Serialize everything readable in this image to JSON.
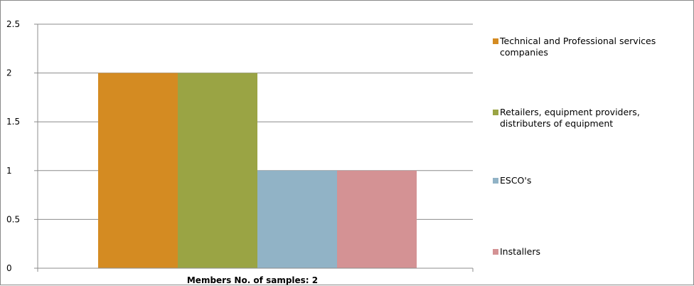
{
  "chart_data": {
    "type": "bar",
    "categories": [
      "Members    No. of samples: 2"
    ],
    "series": [
      {
        "name": "Technical and Professional services companies",
        "values": [
          2
        ],
        "color": "#D48B22"
      },
      {
        "name": "Retailers, equipment providers, distributers of equipment",
        "values": [
          2
        ],
        "color": "#9AA444"
      },
      {
        "name": "ESCO's",
        "values": [
          1
        ],
        "color": "#91B3C6"
      },
      {
        "name": "Installers",
        "values": [
          1
        ],
        "color": "#D49294"
      }
    ],
    "yticks": [
      "0",
      "0.5",
      "1",
      "1.5",
      "2",
      "2.5"
    ],
    "ylim": [
      0,
      2.5
    ],
    "grid": true,
    "legend_position": "right",
    "title": "",
    "xlabel": "Members    No. of samples: 2",
    "ylabel": ""
  }
}
